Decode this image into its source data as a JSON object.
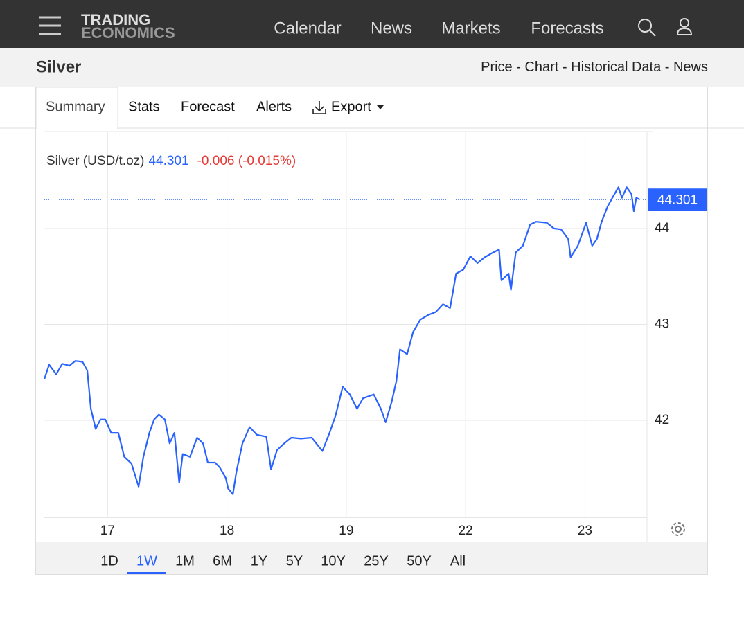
{
  "header": {
    "logo": [
      "TRADING",
      "ECONOMICS"
    ],
    "nav": [
      "Calendar",
      "News",
      "Markets",
      "Forecasts"
    ]
  },
  "page": {
    "title": "Silver",
    "links": [
      "Price",
      "Chart",
      "Historical Data",
      "News"
    ],
    "separator": "-"
  },
  "tabs": [
    {
      "label": "Summary",
      "active": true
    },
    {
      "label": "Stats"
    },
    {
      "label": "Forecast"
    },
    {
      "label": "Alerts"
    },
    {
      "label": "Export"
    }
  ],
  "chart_data": {
    "type": "line",
    "last": 44.301,
    "change": "-0.006 (-0.015%)",
    "series": [
      {
        "name": "Silver (USD/t.oz)",
        "color": "#2962ff",
        "x": [
          0.47,
          0.51,
          0.57,
          0.62,
          0.68,
          0.73,
          0.79,
          0.83,
          0.86,
          0.9,
          0.94,
          0.98,
          1.03,
          1.09,
          1.14,
          1.2,
          1.26,
          1.3,
          1.35,
          1.39,
          1.43,
          1.48,
          1.52,
          1.56,
          1.6,
          1.63,
          1.69,
          1.75,
          1.8,
          1.84,
          1.9,
          1.94,
          1.99,
          2.01,
          2.05,
          2.08,
          2.13,
          2.19,
          2.25,
          2.33,
          2.37,
          2.42,
          2.48,
          2.54,
          2.62,
          2.71,
          2.8,
          2.86,
          2.91,
          2.97,
          3.03,
          3.09,
          3.14,
          3.23,
          3.29,
          3.33,
          3.38,
          3.42,
          3.45,
          3.51,
          3.56,
          3.62,
          3.69,
          3.75,
          3.81,
          3.87,
          3.92,
          3.98,
          4.04,
          4.1,
          4.16,
          4.23,
          4.28,
          4.3,
          4.36,
          4.38,
          4.42,
          4.48,
          4.54,
          4.59,
          4.68,
          4.74,
          4.8,
          4.86,
          4.88,
          4.94,
          5.01,
          5.06,
          5.1,
          5.14,
          5.19,
          5.23,
          5.28,
          5.31,
          5.35,
          5.39,
          5.41,
          5.43,
          5.46
        ],
        "values": [
          42.43,
          42.58,
          42.48,
          42.59,
          42.57,
          42.62,
          42.61,
          42.52,
          42.12,
          41.91,
          42.01,
          42.01,
          41.87,
          41.87,
          41.62,
          41.55,
          41.31,
          41.62,
          41.87,
          42.01,
          42.06,
          42.01,
          41.76,
          41.87,
          41.35,
          41.65,
          41.62,
          41.82,
          41.76,
          41.56,
          41.56,
          41.51,
          41.4,
          41.29,
          41.23,
          41.47,
          41.76,
          41.93,
          41.85,
          41.83,
          41.49,
          41.69,
          41.76,
          41.82,
          41.81,
          41.82,
          41.68,
          41.87,
          42.05,
          42.35,
          42.27,
          42.12,
          42.23,
          42.27,
          42.12,
          41.98,
          42.19,
          42.41,
          42.74,
          42.69,
          42.92,
          43.05,
          43.1,
          43.13,
          43.21,
          43.17,
          43.53,
          43.57,
          43.71,
          43.64,
          43.7,
          43.75,
          43.78,
          43.46,
          43.53,
          43.36,
          43.75,
          43.82,
          44.04,
          44.07,
          44.06,
          44.0,
          43.99,
          43.89,
          43.7,
          43.82,
          44.06,
          43.82,
          43.89,
          44.07,
          44.23,
          44.32,
          44.43,
          44.32,
          44.43,
          44.36,
          44.18,
          44.32,
          44.301
        ]
      }
    ],
    "xlim": [
      0.47,
      5.52
    ],
    "xticks": [
      {
        "value": 1,
        "label": "17"
      },
      {
        "value": 2,
        "label": "18"
      },
      {
        "value": 3,
        "label": "19"
      },
      {
        "value": 4,
        "label": "22"
      },
      {
        "value": 5,
        "label": "23"
      }
    ],
    "ylim": [
      40.99,
      45.01
    ],
    "yticks": [
      42,
      43,
      44
    ],
    "grid": true
  },
  "ranges": [
    {
      "label": "1D"
    },
    {
      "label": "1W",
      "active": true
    },
    {
      "label": "1M"
    },
    {
      "label": "6M"
    },
    {
      "label": "1Y"
    },
    {
      "label": "5Y"
    },
    {
      "label": "10Y"
    },
    {
      "label": "25Y"
    },
    {
      "label": "50Y"
    },
    {
      "label": "All"
    }
  ]
}
